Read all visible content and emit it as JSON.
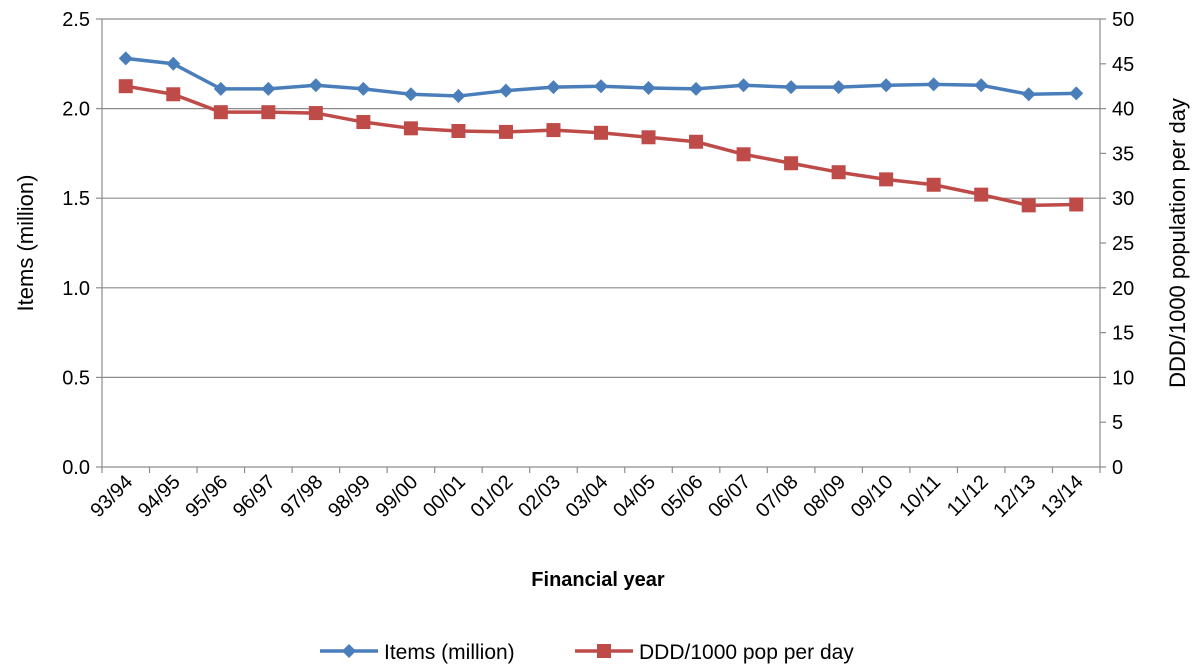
{
  "chart_data": {
    "type": "line",
    "title": "",
    "xlabel": "Financial year",
    "ylabel_left": "Items (million)",
    "ylabel_right": "DDD/1000 population per day",
    "categories": [
      "93/94",
      "94/95",
      "95/96",
      "96/97",
      "97/98",
      "98/99",
      "99/00",
      "00/01",
      "01/02",
      "02/03",
      "03/04",
      "04/05",
      "05/06",
      "06/07",
      "07/08",
      "08/09",
      "09/10",
      "10/11",
      "11/12",
      "12/13",
      "13/14"
    ],
    "y_left": {
      "min": 0,
      "max": 2.5,
      "step": 0.5,
      "tick_labels": [
        "0.0",
        "0.5",
        "1.0",
        "1.5",
        "2.0",
        "2.5"
      ]
    },
    "y_right": {
      "min": 0,
      "max": 50,
      "step": 5,
      "tick_labels": [
        "0",
        "5",
        "10",
        "15",
        "20",
        "25",
        "30",
        "35",
        "40",
        "45",
        "50"
      ]
    },
    "grid": "horizontal",
    "legend_position": "bottom",
    "series": [
      {
        "name": "Items (million)",
        "axis": "left",
        "marker": "diamond",
        "color": "#4a7ebb",
        "values": [
          2.28,
          2.25,
          2.11,
          2.11,
          2.13,
          2.11,
          2.08,
          2.07,
          2.1,
          2.12,
          2.125,
          2.115,
          2.11,
          2.13,
          2.12,
          2.12,
          2.13,
          2.135,
          2.13,
          2.08,
          2.085
        ]
      },
      {
        "name": "DDD/1000 pop per day",
        "axis": "right",
        "marker": "square",
        "color": "#be4b48",
        "values": [
          42.5,
          41.6,
          39.6,
          39.6,
          39.5,
          38.5,
          37.8,
          37.5,
          37.4,
          37.6,
          37.3,
          36.8,
          36.3,
          34.9,
          33.9,
          32.9,
          32.1,
          31.5,
          30.4,
          29.2,
          29.3
        ]
      }
    ]
  }
}
